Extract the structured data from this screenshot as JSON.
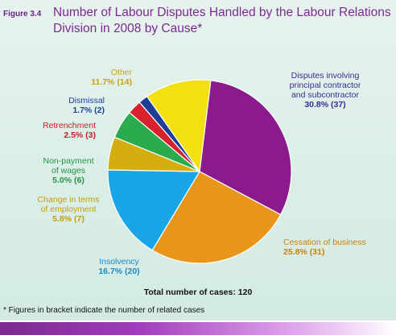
{
  "figure_label": "Figure 3.4",
  "footnote": "* Figures in bracket indicate the number of related cases",
  "chart_data": {
    "type": "pie",
    "title": "Number of Labour Disputes Handled by the Labour Relations Division in 2008 by Cause*",
    "total_label": "Total number of cases: 120",
    "total": 120,
    "slices": [
      {
        "label": "Disputes involving principal contractor and subcontractor",
        "percent": 30.8,
        "value": 37,
        "display_value": "30.8%  (37)",
        "color": "#8b1a8d",
        "text_color": "#3c2c8f"
      },
      {
        "label": "Cessation of business",
        "percent": 25.8,
        "value": 31,
        "display_value": "25.8%  (31)",
        "color": "#e8951c",
        "text_color": "#c7810e"
      },
      {
        "label": "Insolvency",
        "percent": 16.7,
        "value": 20,
        "display_value": "16.7%  (20)",
        "color": "#1aa6e6",
        "text_color": "#1788c9"
      },
      {
        "label": "Change in terms of employment",
        "percent": 5.8,
        "value": 7,
        "display_value": "5.8%  (7)",
        "color": "#d4ad0e",
        "text_color": "#c79c0e"
      },
      {
        "label": "Non-payment of wages",
        "percent": 5.0,
        "value": 6,
        "display_value": "5.0%  (6)",
        "color": "#2aac4e",
        "text_color": "#249644"
      },
      {
        "label": "Retrenchment",
        "percent": 2.5,
        "value": 3,
        "display_value": "2.5%  (3)",
        "color": "#d8212c",
        "text_color": "#cc1d26"
      },
      {
        "label": "Dismissal",
        "percent": 1.7,
        "value": 2,
        "display_value": "1.7%  (2)",
        "color": "#1d3f9a",
        "text_color": "#1d3f9a"
      },
      {
        "label": "Other",
        "percent": 11.7,
        "value": 14,
        "display_value": "11.7%  (14)",
        "color": "#f2e012",
        "text_color": "#c9a20e"
      }
    ]
  }
}
